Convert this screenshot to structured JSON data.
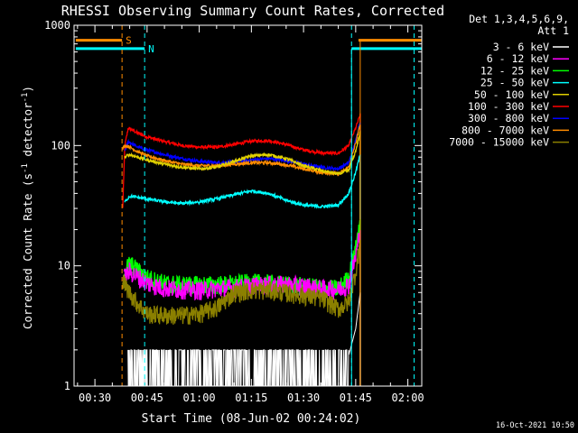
{
  "chart_data": {
    "type": "line",
    "title": "RHESSI Observing Summary Count Rates, Corrected",
    "xlabel": "Start Time (08-Jun-02 00:24:02)",
    "ylabel": "Corrected Count Rate (s",
    "ylabel_sup1": "-1",
    "ylabel_mid": " detector",
    "ylabel_sup2": "-1",
    "ylabel_end": ")",
    "y_scale": "log",
    "ylim": [
      1,
      1000
    ],
    "xlim_min": [
      24.0,
      124.0
    ],
    "y_ticks": [
      {
        "v": 1,
        "label": "1"
      },
      {
        "v": 10,
        "label": "10"
      },
      {
        "v": 100,
        "label": "100"
      },
      {
        "v": 1000,
        "label": "1000"
      }
    ],
    "x_ticks": [
      {
        "v": 30,
        "label": "00:30"
      },
      {
        "v": 45,
        "label": "00:45"
      },
      {
        "v": 60,
        "label": "01:00"
      },
      {
        "v": 75,
        "label": "01:15"
      },
      {
        "v": 90,
        "label": "01:30"
      },
      {
        "v": 105,
        "label": "01:45"
      },
      {
        "v": 120,
        "label": "02:00"
      }
    ],
    "legend": {
      "position": "top-right",
      "header1": "Det 1,3,4,5,6,9,",
      "header2": "Att 1",
      "entries": [
        {
          "label": "3 - 6 keV",
          "color": "#ffffff"
        },
        {
          "label": "6 - 12 keV",
          "color": "#ff00ff"
        },
        {
          "label": "12 - 25 keV",
          "color": "#00ff00"
        },
        {
          "label": "25 - 50 keV",
          "color": "#00ffff"
        },
        {
          "label": "50 - 100 keV",
          "color": "#e0d000"
        },
        {
          "label": "100 - 300 keV",
          "color": "#ff0000"
        },
        {
          "label": "300 - 800 keV",
          "color": "#0000ff"
        },
        {
          "label": "800 - 7000 keV",
          "color": "#ff8c00"
        },
        {
          "label": "7000 - 15000 keV",
          "color": "#8b8000"
        }
      ]
    },
    "flags": [
      {
        "name": "S",
        "color": "#ff8c00",
        "segments": [
          [
            24.5,
            37.8
          ],
          [
            105.8,
            124.0
          ]
        ],
        "value": 750
      },
      {
        "name": "N",
        "color": "#00ffff",
        "segments": [
          [
            24.5,
            44.3
          ],
          [
            103.8,
            124.0
          ]
        ],
        "value": 640
      }
    ],
    "markers": [
      {
        "x": 37.8,
        "color": "#ff8c00"
      },
      {
        "x": 44.3,
        "color": "#00ffff"
      },
      {
        "x": 103.8,
        "color": "#00ffff"
      },
      {
        "x": 121.8,
        "color": "#00ffff"
      }
    ],
    "series": [
      {
        "name": "100 - 300 keV",
        "color": "#ff0000",
        "x": [
          38,
          38.6,
          39.6,
          42,
          45,
          50,
          55,
          60,
          65,
          70,
          75,
          80,
          85,
          90,
          95,
          100,
          103,
          105,
          106.3
        ],
        "y": [
          30,
          100,
          140,
          128,
          118,
          108,
          100,
          97,
          97,
          102,
          109,
          110,
          102,
          92,
          87,
          86,
          100,
          140,
          180
        ]
      },
      {
        "name": "300 - 800 keV",
        "color": "#0000ff",
        "x": [
          38.6,
          39.6,
          42,
          45,
          50,
          55,
          60,
          65,
          70,
          75,
          80,
          85,
          90,
          95,
          100,
          103,
          105,
          106.3
        ],
        "y": [
          90,
          108,
          98,
          92,
          84,
          78,
          74,
          72,
          73,
          76,
          78,
          75,
          70,
          66,
          64,
          72,
          110,
          160
        ]
      },
      {
        "name": "800 - 7000 keV",
        "color": "#ff8c00",
        "x": [
          38,
          38.8,
          40,
          42,
          45,
          50,
          55,
          60,
          65,
          70,
          75,
          80,
          85,
          90,
          95,
          100,
          103,
          105,
          106.3
        ],
        "y": [
          95,
          100,
          97,
          90,
          82,
          75,
          70,
          68,
          68,
          70,
          72,
          72,
          69,
          64,
          60,
          58,
          66,
          105,
          150
        ]
      },
      {
        "name": "50 - 100 keV",
        "color": "#e0d000",
        "x": [
          38.6,
          40,
          45,
          50,
          55,
          60,
          65,
          70,
          75,
          80,
          85,
          90,
          95,
          100,
          103,
          105,
          106.3
        ],
        "y": [
          80,
          84,
          76,
          70,
          66,
          64,
          66,
          74,
          82,
          84,
          78,
          68,
          62,
          58,
          62,
          90,
          130
        ]
      },
      {
        "name": "25 - 50 keV",
        "color": "#00ffff",
        "x": [
          38.6,
          40,
          45,
          50,
          55,
          60,
          65,
          70,
          75,
          80,
          85,
          90,
          95,
          100,
          103,
          105,
          106.3
        ],
        "y": [
          34,
          38,
          36,
          34,
          33,
          34,
          36,
          39,
          42,
          40,
          35,
          32,
          31,
          32,
          40,
          60,
          85
        ]
      },
      {
        "name": "12 - 25 keV",
        "color": "#00ff00",
        "x": [
          38.4,
          40,
          45,
          50,
          55,
          60,
          65,
          70,
          75,
          80,
          85,
          90,
          95,
          100,
          103,
          105,
          106.3
        ],
        "y": [
          9,
          10.5,
          8,
          7.2,
          7,
          7,
          7,
          7.1,
          7.3,
          7.2,
          7,
          6.8,
          6.6,
          6.5,
          8,
          14,
          25
        ]
      },
      {
        "name": "6 - 12 keV",
        "color": "#ff00ff",
        "x": [
          38.4,
          40,
          45,
          50,
          55,
          60,
          65,
          70,
          75,
          80,
          85,
          90,
          95,
          100,
          103,
          105,
          106.3
        ],
        "y": [
          8,
          9,
          7.2,
          6.5,
          6.4,
          6.3,
          6.5,
          6.6,
          6.8,
          7,
          7,
          6.8,
          6.5,
          6.4,
          7,
          12,
          20
        ]
      },
      {
        "name": "7000 - 15000 keV",
        "color": "#8b8000",
        "x": [
          38,
          40,
          42,
          45,
          50,
          55,
          60,
          65,
          70,
          75,
          80,
          85,
          90,
          95,
          100,
          103,
          105,
          106.3
        ],
        "y": [
          7.5,
          6,
          5,
          4,
          3.9,
          3.9,
          4,
          4.5,
          6,
          6.3,
          6.3,
          6,
          5.7,
          5.4,
          4.4,
          5,
          9,
          16
        ]
      },
      {
        "name": "3 - 6 keV",
        "color": "#ffffff",
        "x": [
          39.5,
          40,
          45,
          50,
          55,
          60,
          65,
          70,
          75,
          80,
          85,
          90,
          95,
          100,
          103,
          105,
          106.3
        ],
        "y": [
          1.5,
          1.7,
          1.6,
          1.5,
          1.5,
          1.4,
          1.5,
          1.6,
          1.7,
          1.6,
          1.5,
          1.5,
          1.4,
          1.5,
          1.8,
          3,
          6
        ]
      }
    ],
    "timestamp": "16-Oct-2021 10:50"
  }
}
